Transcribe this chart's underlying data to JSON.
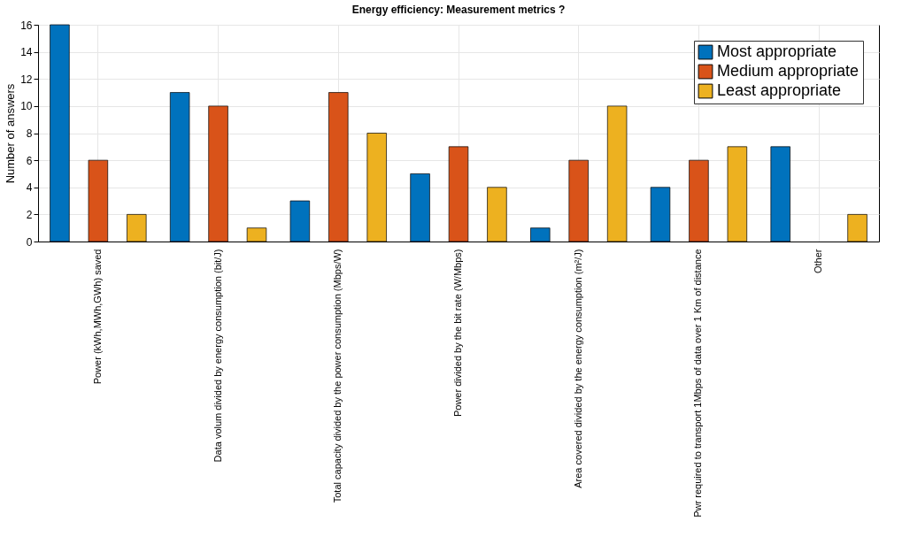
{
  "chart_data": {
    "type": "bar",
    "title": "Energy efficiency: Measurement metrics ?",
    "ylabel": "Number of answers",
    "categories": [
      "Power (kWh,MWh,GWh) saved",
      "Data volum divided by energy consumption (bit/J)",
      "Total capacity divided by the power consumption (Mbps/W)",
      "Power divided by the bit rate (W/Mbps)",
      "Area covered divided by the energy consumption (m²/J)",
      "Pwr required to transport 1Mbps of data over 1 Km of distance",
      "Other"
    ],
    "series": [
      {
        "name": "Most appropriate",
        "color": "#0072bd",
        "values": [
          16,
          11,
          3,
          5,
          1,
          4,
          7
        ]
      },
      {
        "name": "Medium appropriate",
        "color": "#d95319",
        "values": [
          6,
          10,
          11,
          7,
          6,
          6,
          0
        ]
      },
      {
        "name": "Least appropriate",
        "color": "#edb120",
        "values": [
          2,
          1,
          8,
          4,
          10,
          7,
          2
        ]
      }
    ],
    "ylim": [
      0,
      16
    ],
    "yticks": [
      0,
      2,
      4,
      6,
      8,
      10,
      12,
      14,
      16
    ],
    "grid": true,
    "legend": "top right"
  }
}
